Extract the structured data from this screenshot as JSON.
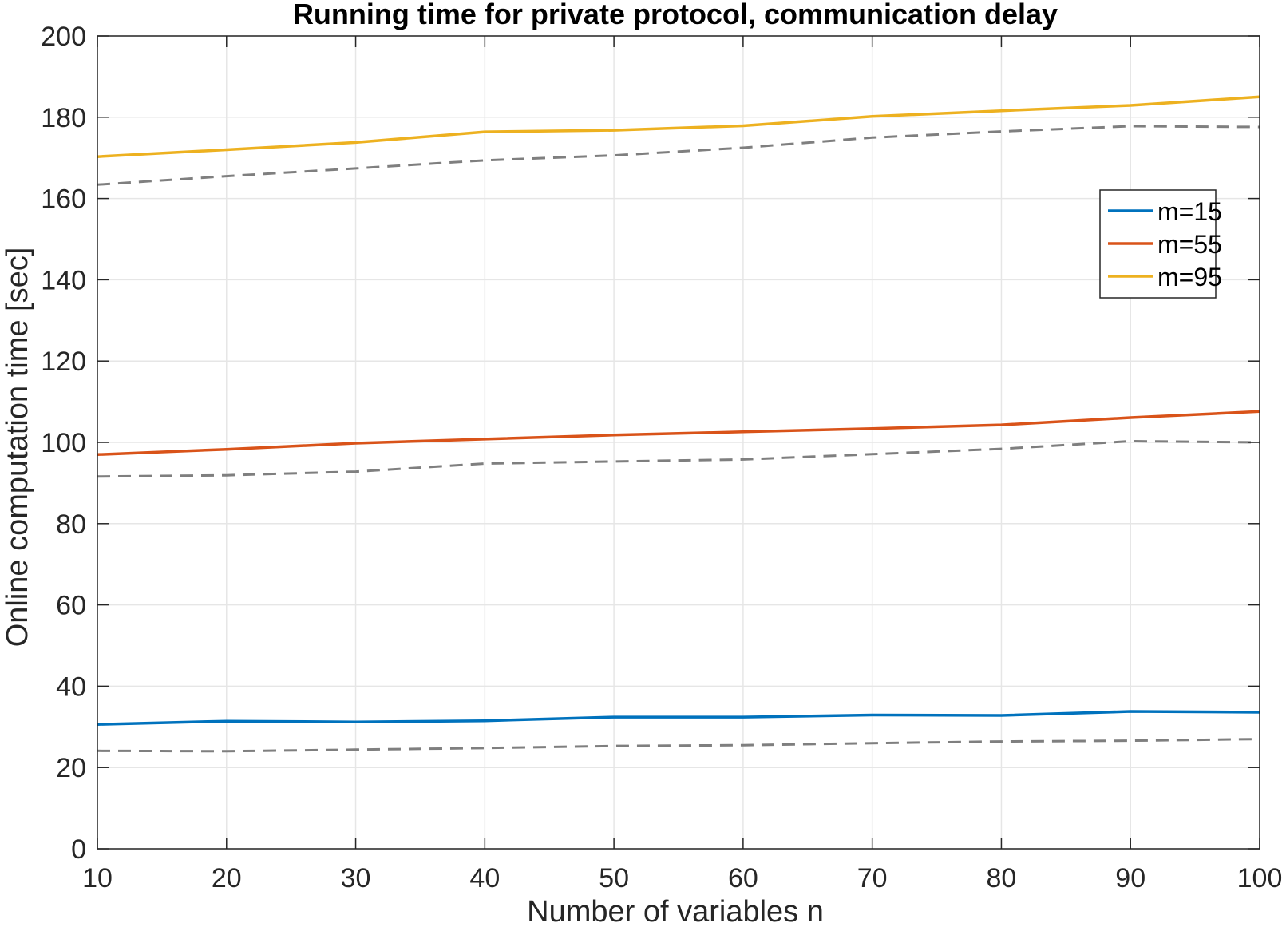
{
  "chart_data": {
    "type": "line",
    "title": "Running time for private protocol, communication delay",
    "xlabel": "Number of variables n",
    "ylabel": "Online computation time [sec]",
    "xlim": [
      10,
      100
    ],
    "ylim": [
      0,
      200
    ],
    "xticks": [
      "10",
      "20",
      "30",
      "40",
      "50",
      "60",
      "70",
      "80",
      "90",
      "100"
    ],
    "yticks": [
      "0",
      "20",
      "40",
      "60",
      "80",
      "100",
      "120",
      "140",
      "160",
      "180",
      "200"
    ],
    "grid": true,
    "legend_position": "upper-right",
    "x": [
      10,
      20,
      30,
      40,
      50,
      60,
      70,
      80,
      90,
      100
    ],
    "series": [
      {
        "name": "m=15",
        "color": "#0072BD",
        "style": "solid",
        "legend": true,
        "values": [
          30.6,
          31.4,
          31.2,
          31.5,
          32.4,
          32.4,
          32.9,
          32.8,
          33.8,
          33.6
        ]
      },
      {
        "name": "m=55",
        "color": "#D95319",
        "style": "solid",
        "legend": true,
        "values": [
          97.0,
          98.3,
          99.8,
          100.8,
          101.8,
          102.6,
          103.4,
          104.3,
          106.1,
          107.6
        ]
      },
      {
        "name": "m=95",
        "color": "#EDB120",
        "style": "solid",
        "legend": true,
        "values": [
          170.3,
          172.0,
          173.8,
          176.4,
          176.8,
          177.9,
          180.2,
          181.6,
          182.9,
          185.0
        ]
      },
      {
        "name": "",
        "color": "#7f7f7f",
        "style": "dashed",
        "legend": false,
        "values": [
          24.1,
          24.0,
          24.4,
          24.8,
          25.3,
          25.5,
          26.0,
          26.4,
          26.6,
          27.0
        ]
      },
      {
        "name": "",
        "color": "#7f7f7f",
        "style": "dashed",
        "legend": false,
        "values": [
          91.6,
          91.9,
          92.8,
          94.8,
          95.3,
          95.8,
          97.1,
          98.4,
          100.3,
          100.0
        ]
      },
      {
        "name": "",
        "color": "#7f7f7f",
        "style": "dashed",
        "legend": false,
        "values": [
          163.4,
          165.5,
          167.4,
          169.4,
          170.6,
          172.5,
          175.0,
          176.5,
          177.8,
          177.6
        ]
      }
    ]
  }
}
